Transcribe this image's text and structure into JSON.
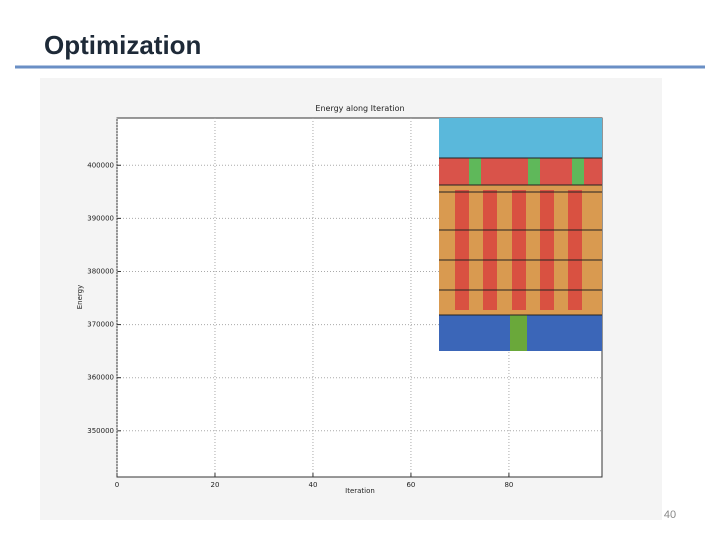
{
  "slide": {
    "title": "Optimization",
    "page_number": "40"
  },
  "chart_data": {
    "type": "line",
    "title": "Energy along Iteration",
    "x_label": "Iteration",
    "y_label": "Energy",
    "series": [],
    "xlim": [
      0,
      99
    ],
    "xticks": [
      0,
      20,
      40,
      60,
      80
    ],
    "ylim": [
      341300,
      408900
    ],
    "yticks": [
      350000,
      360000,
      370000,
      380000,
      390000,
      400000
    ],
    "grid": true
  }
}
